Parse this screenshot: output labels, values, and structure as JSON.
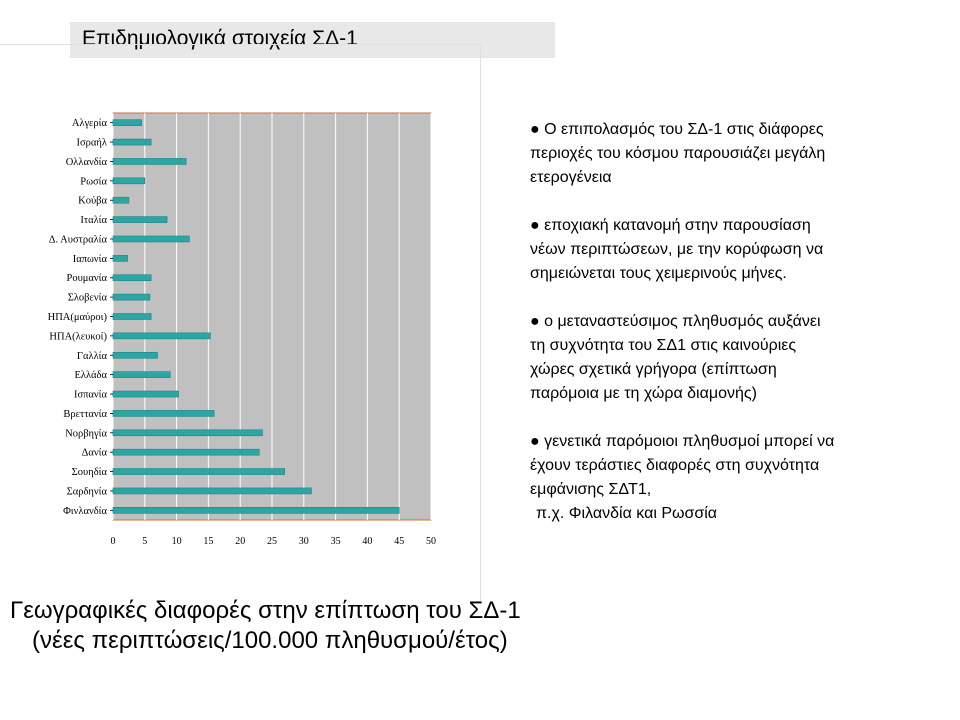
{
  "slide": {
    "title": "Επιδημιολογικά στοιχεία ΣΔ-1",
    "bullets": [
      "●  Ο επιπολασμός του ΣΔ-1 στις διάφορες\nπεριοχές του κόσμου παρουσιάζει μεγάλη\nετερογένεια",
      "● εποχιακή κατανομή στην παρουσίαση\nνέων περιπτώσεων, με την κορύφωση να\nσημειώνεται τους χειμερινούς μήνες.",
      "●  ο μεταναστεύσιμος πληθυσμός αυξάνει\nτη συχνότητα του ΣΔ1 στις καινούριες\nχώρες σχετικά γρήγορα  (επίπτωση\nπαρόμοια με τη χώρα διαμονής)",
      "●  γενετικά παρόμοιοι πληθυσμοί μπορεί να\nέχουν τεράστιες διαφορές στη συχνότητα\nεμφάνισης ΣΔΤ1,",
      "π.χ. Φιλανδία και Ρωσσία"
    ],
    "caption_line1": "Γεωγραφικές διαφορές στην επίπτωση του ΣΔ-1",
    "caption_line2": "(νέες περιπτώσεις/100.000 πληθυσμού/έτος)"
  },
  "chart_data": {
    "type": "bar",
    "orientation": "horizontal",
    "categories": [
      "Αλγερία",
      "Ισραήλ",
      "Ολλανδία",
      "Ρωσία",
      "Κούβα",
      "Ιταλία",
      "Δ. Αυστραλία",
      "Ιαπωνία",
      "Ρουμανία",
      "Σλοβενία",
      "ΗΠΑ(μαύροι)",
      "ΗΠΑ(λευκοί)",
      "Γαλλία",
      "Ελλάδα",
      "Ισπανία",
      "Βρεττανία",
      "Νορβηγία",
      "Δανία",
      "Σουηδία",
      "Σαρδηνία",
      "Φινλανδία"
    ],
    "values": [
      4.5,
      6,
      11.5,
      5,
      2.5,
      8.5,
      12,
      2.3,
      6,
      5.8,
      6,
      15.3,
      7,
      9,
      10.3,
      15.9,
      23.5,
      23,
      27,
      31.2,
      45
    ],
    "xlim": [
      0,
      50
    ],
    "xticks": [
      0,
      5,
      10,
      15,
      20,
      25,
      30,
      35,
      40,
      45,
      50
    ],
    "grid": true,
    "bar_color": "#2ca6a4",
    "plot_background": "#c0c0c0"
  }
}
